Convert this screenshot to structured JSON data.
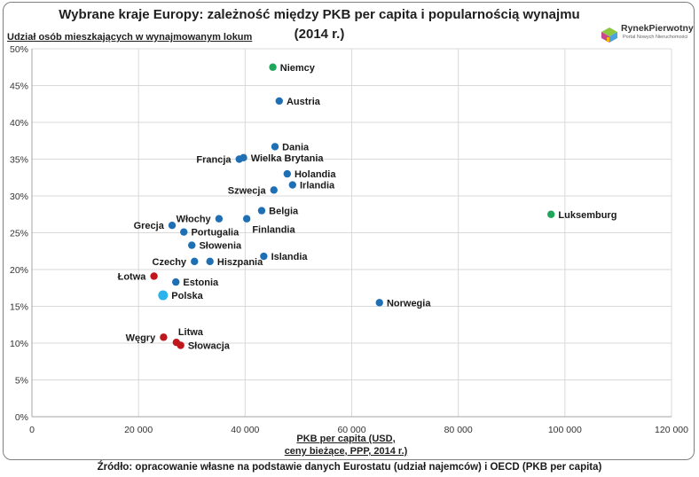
{
  "title_line1": "Wybrane kraje Europy: zależność między PKB per capita i popularnością wynajmu",
  "title_line2": "(2014 r.)",
  "logo": {
    "brand": "RynekPierwotny",
    "tagline": "Portal Nowych Nieruchomości",
    "icon": "house-cube-icon",
    "colors": [
      "#8dc63f",
      "#c8468f",
      "#4aa3df",
      "#f7b500"
    ]
  },
  "source": "Źródło: opracowanie własne na podstawie danych Eurostatu (udział najemców) i OECD (PKB per capita)",
  "chart_data": {
    "type": "scatter",
    "title": "Wybrane kraje Europy: zależność między PKB per capita i popularnością wynajmu (2014 r.)",
    "ylabel": "Udział osób mieszkających w wynajmowanym lokum",
    "xlabel_line1": "PKB per capita (USD,",
    "xlabel_line2": "ceny bieżące, PPP, 2014 r.)",
    "xlim": [
      0,
      120000
    ],
    "ylim": [
      0,
      0.5
    ],
    "x_ticks": [
      0,
      20000,
      40000,
      60000,
      80000,
      100000,
      120000
    ],
    "x_tick_labels": [
      "0",
      "20 000",
      "40 000",
      "60 000",
      "80 000",
      "100 000",
      "120 000"
    ],
    "y_ticks": [
      0,
      0.05,
      0.1,
      0.15,
      0.2,
      0.25,
      0.3,
      0.35,
      0.4,
      0.45,
      0.5
    ],
    "y_tick_labels": [
      "0%",
      "5%",
      "10%",
      "15%",
      "20%",
      "25%",
      "30%",
      "35%",
      "40%",
      "45%",
      "50%"
    ],
    "grid": true,
    "colors": {
      "blue": "#1f6fb5",
      "green": "#1fa65a",
      "red": "#c0171c",
      "highlight": "#2ab3ea"
    },
    "points": [
      {
        "label": "Niemcy",
        "x": 45200,
        "y": 0.475,
        "color": "green",
        "anchor": "right"
      },
      {
        "label": "Austria",
        "x": 46400,
        "y": 0.429,
        "color": "blue",
        "anchor": "right"
      },
      {
        "label": "Dania",
        "x": 45600,
        "y": 0.367,
        "color": "blue",
        "anchor": "right"
      },
      {
        "label": "Francja",
        "x": 38900,
        "y": 0.35,
        "color": "blue",
        "anchor": "left"
      },
      {
        "label": "Wielka Brytania",
        "x": 39700,
        "y": 0.352,
        "color": "blue",
        "anchor": "right"
      },
      {
        "label": "Holandia",
        "x": 47900,
        "y": 0.33,
        "color": "blue",
        "anchor": "right"
      },
      {
        "label": "Irlandia",
        "x": 48900,
        "y": 0.315,
        "color": "blue",
        "anchor": "right"
      },
      {
        "label": "Szwecja",
        "x": 45400,
        "y": 0.308,
        "color": "blue",
        "anchor": "left"
      },
      {
        "label": "Luksemburg",
        "x": 97400,
        "y": 0.275,
        "color": "green",
        "anchor": "right"
      },
      {
        "label": "Belgia",
        "x": 43100,
        "y": 0.28,
        "color": "blue",
        "anchor": "right"
      },
      {
        "label": "Włochy",
        "x": 35100,
        "y": 0.269,
        "color": "blue",
        "anchor": "left"
      },
      {
        "label": "Finlandia",
        "x": 40300,
        "y": 0.269,
        "color": "blue",
        "anchor": "below"
      },
      {
        "label": "Grecja",
        "x": 26300,
        "y": 0.26,
        "color": "blue",
        "anchor": "left"
      },
      {
        "label": "Portugalia",
        "x": 28500,
        "y": 0.251,
        "color": "blue",
        "anchor": "right"
      },
      {
        "label": "Słowenia",
        "x": 30000,
        "y": 0.233,
        "color": "blue",
        "anchor": "right"
      },
      {
        "label": "Islandia",
        "x": 43500,
        "y": 0.218,
        "color": "blue",
        "anchor": "right"
      },
      {
        "label": "Czechy",
        "x": 30500,
        "y": 0.211,
        "color": "blue",
        "anchor": "left"
      },
      {
        "label": "Hiszpania",
        "x": 33400,
        "y": 0.211,
        "color": "blue",
        "anchor": "right"
      },
      {
        "label": "Łotwa",
        "x": 22900,
        "y": 0.191,
        "color": "red",
        "anchor": "left"
      },
      {
        "label": "Estonia",
        "x": 27000,
        "y": 0.183,
        "color": "blue",
        "anchor": "right"
      },
      {
        "label": "Polska",
        "x": 24600,
        "y": 0.165,
        "color": "highlight",
        "anchor": "right",
        "size": "large"
      },
      {
        "label": "Norwegia",
        "x": 65200,
        "y": 0.155,
        "color": "blue",
        "anchor": "right"
      },
      {
        "label": "Węgry",
        "x": 24700,
        "y": 0.108,
        "color": "red",
        "anchor": "left"
      },
      {
        "label": "Litwa",
        "x": 27100,
        "y": 0.101,
        "color": "red",
        "anchor": "above"
      },
      {
        "label": "Słowacja",
        "x": 27900,
        "y": 0.097,
        "color": "red",
        "anchor": "right"
      }
    ]
  }
}
